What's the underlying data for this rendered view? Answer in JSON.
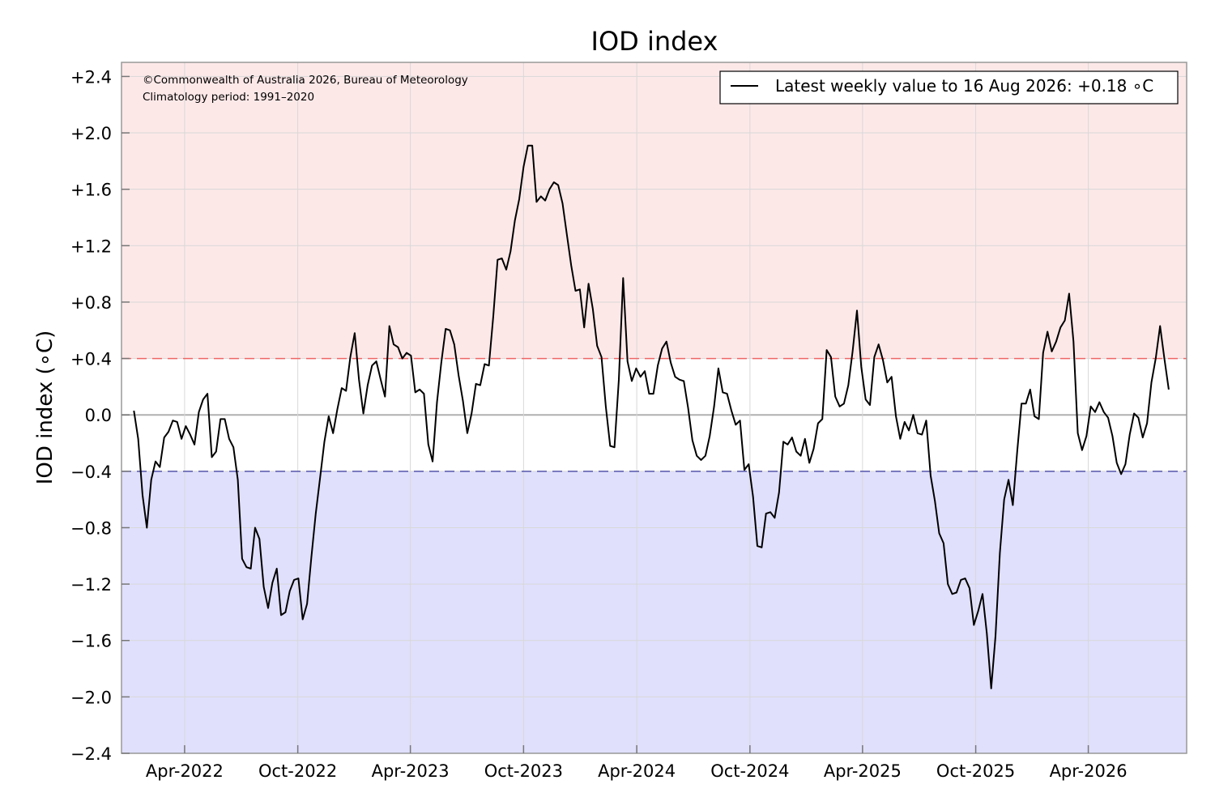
{
  "chart_data": {
    "type": "line",
    "title": "IOD index",
    "ylabel": "IOD index (∘C)",
    "xlabel": "",
    "ylim": [
      -2.4,
      2.5
    ],
    "xlim": [
      "2021-12-20",
      "2026-09-07"
    ],
    "grid": true,
    "legend_position": "top-right",
    "notes": [
      "©Commonwealth of Australia 2026, Bureau of Meteorology",
      "Climatology period: 1991–2020"
    ],
    "yticks": [
      {
        "value": 2.4,
        "label": "+2.4"
      },
      {
        "value": 2.0,
        "label": "+2.0"
      },
      {
        "value": 1.6,
        "label": "+1.6"
      },
      {
        "value": 1.2,
        "label": "+1.2"
      },
      {
        "value": 0.8,
        "label": "+0.8"
      },
      {
        "value": 0.4,
        "label": "+0.4"
      },
      {
        "value": 0.0,
        "label": "0.0"
      },
      {
        "value": -0.4,
        "label": "−0.4"
      },
      {
        "value": -0.8,
        "label": "−0.8"
      },
      {
        "value": -1.2,
        "label": "−1.2"
      },
      {
        "value": -1.6,
        "label": "−1.6"
      },
      {
        "value": -2.0,
        "label": "−2.0"
      },
      {
        "value": -2.4,
        "label": "−2.4"
      }
    ],
    "xticks": [
      {
        "date": "2022-04-01",
        "label": "Apr-2022"
      },
      {
        "date": "2022-10-01",
        "label": "Oct-2022"
      },
      {
        "date": "2023-04-01",
        "label": "Apr-2023"
      },
      {
        "date": "2023-10-01",
        "label": "Oct-2023"
      },
      {
        "date": "2024-04-01",
        "label": "Apr-2024"
      },
      {
        "date": "2024-10-01",
        "label": "Oct-2024"
      },
      {
        "date": "2025-04-01",
        "label": "Apr-2025"
      },
      {
        "date": "2025-10-01",
        "label": "Oct-2025"
      },
      {
        "date": "2026-04-01",
        "label": "Apr-2026"
      }
    ],
    "thresholds": {
      "positive": 0.4,
      "negative": -0.4
    },
    "colors": {
      "positive_zone": "#fde8e8",
      "negative_zone": "#e0e0fd",
      "positive_threshold": "#ee6666",
      "negative_threshold": "#5555aa",
      "line": "#000000",
      "grid": "#d8d8d8",
      "frame": "#999999"
    },
    "series": [
      {
        "name": "Latest weekly value to 16 Aug 2026: +0.18 ∘C",
        "start_date": "2022-01-09",
        "interval_days": 7,
        "values": [
          0.03,
          -0.17,
          -0.57,
          -0.8,
          -0.46,
          -0.33,
          -0.37,
          -0.16,
          -0.12,
          -0.04,
          -0.05,
          -0.17,
          -0.08,
          -0.14,
          -0.21,
          0.02,
          0.11,
          0.15,
          -0.3,
          -0.26,
          -0.03,
          -0.03,
          -0.17,
          -0.23,
          -0.46,
          -1.02,
          -1.08,
          -1.09,
          -0.8,
          -0.88,
          -1.22,
          -1.37,
          -1.19,
          -1.09,
          -1.42,
          -1.4,
          -1.25,
          -1.17,
          -1.16,
          -1.45,
          -1.34,
          -1.01,
          -0.7,
          -0.45,
          -0.19,
          -0.01,
          -0.13,
          0.04,
          0.19,
          0.17,
          0.41,
          0.58,
          0.25,
          0.01,
          0.21,
          0.35,
          0.38,
          0.25,
          0.13,
          0.63,
          0.5,
          0.48,
          0.4,
          0.44,
          0.42,
          0.16,
          0.18,
          0.15,
          -0.21,
          -0.33,
          0.09,
          0.37,
          0.61,
          0.6,
          0.5,
          0.28,
          0.1,
          -0.13,
          0.01,
          0.22,
          0.21,
          0.36,
          0.35,
          0.7,
          1.1,
          1.11,
          1.03,
          1.16,
          1.38,
          1.53,
          1.76,
          1.91,
          1.91,
          1.51,
          1.55,
          1.52,
          1.6,
          1.65,
          1.63,
          1.5,
          1.28,
          1.06,
          0.88,
          0.89,
          0.62,
          0.93,
          0.75,
          0.49,
          0.41,
          0.06,
          -0.22,
          -0.23,
          0.25,
          0.97,
          0.38,
          0.24,
          0.33,
          0.27,
          0.31,
          0.15,
          0.15,
          0.35,
          0.47,
          0.52,
          0.37,
          0.27,
          0.25,
          0.24,
          0.05,
          -0.18,
          -0.29,
          -0.32,
          -0.29,
          -0.15,
          0.06,
          0.33,
          0.16,
          0.15,
          0.03,
          -0.07,
          -0.04,
          -0.39,
          -0.35,
          -0.58,
          -0.93,
          -0.94,
          -0.7,
          -0.69,
          -0.73,
          -0.55,
          -0.19,
          -0.21,
          -0.16,
          -0.26,
          -0.29,
          -0.17,
          -0.34,
          -0.24,
          -0.06,
          -0.03,
          0.46,
          0.41,
          0.13,
          0.06,
          0.08,
          0.21,
          0.45,
          0.74,
          0.34,
          0.11,
          0.07,
          0.41,
          0.5,
          0.39,
          0.23,
          0.27,
          -0.01,
          -0.17,
          -0.05,
          -0.11,
          0.0,
          -0.13,
          -0.14,
          -0.04,
          -0.43,
          -0.61,
          -0.84,
          -0.91,
          -1.2,
          -1.27,
          -1.26,
          -1.17,
          -1.16,
          -1.23,
          -1.49,
          -1.39,
          -1.27,
          -1.55,
          -1.94,
          -1.57,
          -0.98,
          -0.6,
          -0.46,
          -0.64,
          -0.26,
          0.08,
          0.08,
          0.18,
          -0.01,
          -0.03,
          0.44,
          0.59,
          0.45,
          0.52,
          0.62,
          0.67,
          0.86,
          0.52,
          -0.13,
          -0.25,
          -0.15,
          0.06,
          0.02,
          0.09,
          0.02,
          -0.02,
          -0.15,
          -0.34,
          -0.42,
          -0.35,
          -0.14,
          0.01,
          -0.02,
          -0.16,
          -0.06,
          0.23,
          0.4,
          0.63,
          0.4,
          0.18
        ]
      }
    ]
  }
}
